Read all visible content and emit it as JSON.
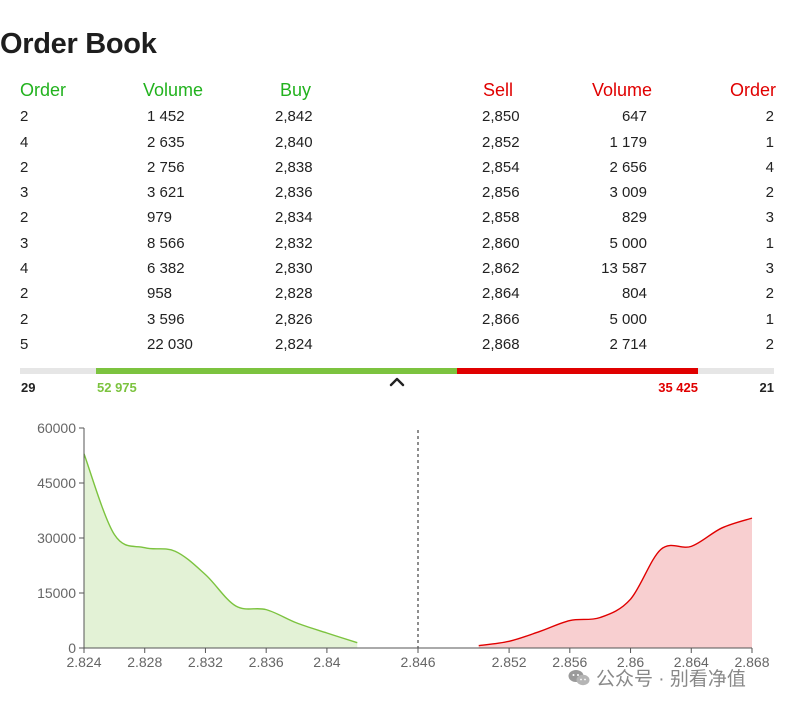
{
  "title": "Order Book",
  "columns": {
    "buy_order": "Order",
    "buy_volume": "Volume",
    "buy_price": "Buy",
    "sell_price": "Sell",
    "sell_volume": "Volume",
    "sell_order": "Order"
  },
  "rows": [
    {
      "buy_order": "2",
      "buy_volume": "1 452",
      "buy_price": "2,842",
      "sell_price": "2,850",
      "sell_volume": "647",
      "sell_order": "2"
    },
    {
      "buy_order": "4",
      "buy_volume": "2 635",
      "buy_price": "2,840",
      "sell_price": "2,852",
      "sell_volume": "1 179",
      "sell_order": "1"
    },
    {
      "buy_order": "2",
      "buy_volume": "2 756",
      "buy_price": "2,838",
      "sell_price": "2,854",
      "sell_volume": "2 656",
      "sell_order": "4"
    },
    {
      "buy_order": "3",
      "buy_volume": "3 621",
      "buy_price": "2,836",
      "sell_price": "2,856",
      "sell_volume": "3 009",
      "sell_order": "2"
    },
    {
      "buy_order": "2",
      "buy_volume": "979",
      "buy_price": "2,834",
      "sell_price": "2,858",
      "sell_volume": "829",
      "sell_order": "3"
    },
    {
      "buy_order": "3",
      "buy_volume": "8 566",
      "buy_price": "2,832",
      "sell_price": "2,860",
      "sell_volume": "5 000",
      "sell_order": "1"
    },
    {
      "buy_order": "4",
      "buy_volume": "6 382",
      "buy_price": "2,830",
      "sell_price": "2,862",
      "sell_volume": "13 587",
      "sell_order": "3"
    },
    {
      "buy_order": "2",
      "buy_volume": "958",
      "buy_price": "2,828",
      "sell_price": "2,864",
      "sell_volume": "804",
      "sell_order": "2"
    },
    {
      "buy_order": "2",
      "buy_volume": "3 596",
      "buy_price": "2,826",
      "sell_price": "2,866",
      "sell_volume": "5 000",
      "sell_order": "1"
    },
    {
      "buy_order": "5",
      "buy_volume": "22 030",
      "buy_price": "2,824",
      "sell_price": "2,868",
      "sell_volume": "2 714",
      "sell_order": "2"
    }
  ],
  "totals": {
    "buy_orders": "29",
    "buy_volume": "52 975",
    "sell_volume": "35 425",
    "sell_orders": "21",
    "buy_share": 0.599
  },
  "colors": {
    "buy": "#22b21e",
    "buy_bar": "#7cc33f",
    "buy_fill": "#e3f2d6",
    "sell": "#e00000",
    "sell_fill": "#f8cfd0",
    "axis": "#555555"
  },
  "icons": {
    "toggle": "chevron-up-icon",
    "watermark": "wechat-icon"
  },
  "watermark": "公众号 · 别看净值",
  "chart_data": {
    "type": "area",
    "title": "",
    "xlabel": "",
    "ylabel": "",
    "xlim": [
      2.824,
      2.868
    ],
    "ylim": [
      0,
      60000
    ],
    "x_ticks": [
      "2.824",
      "2.828",
      "2.832",
      "2.836",
      "2.84",
      "2.846",
      "2.852",
      "2.856",
      "2.86",
      "2.864",
      "2.868"
    ],
    "y_ticks": [
      "0",
      "15000",
      "30000",
      "45000",
      "60000"
    ],
    "midline_x": 2.846,
    "series": [
      {
        "side": "buy",
        "x": [
          2.824,
          2.826,
          2.828,
          2.83,
          2.832,
          2.834,
          2.836,
          2.838,
          2.84,
          2.842
        ],
        "y": [
          52975,
          30945,
          27349,
          26391,
          20009,
          11443,
          10464,
          6843,
          4087,
          1452
        ]
      },
      {
        "side": "sell",
        "x": [
          2.85,
          2.852,
          2.854,
          2.856,
          2.858,
          2.86,
          2.862,
          2.864,
          2.866,
          2.868
        ],
        "y": [
          647,
          1826,
          4482,
          7491,
          8320,
          13320,
          26907,
          27711,
          32711,
          35425
        ]
      }
    ]
  }
}
